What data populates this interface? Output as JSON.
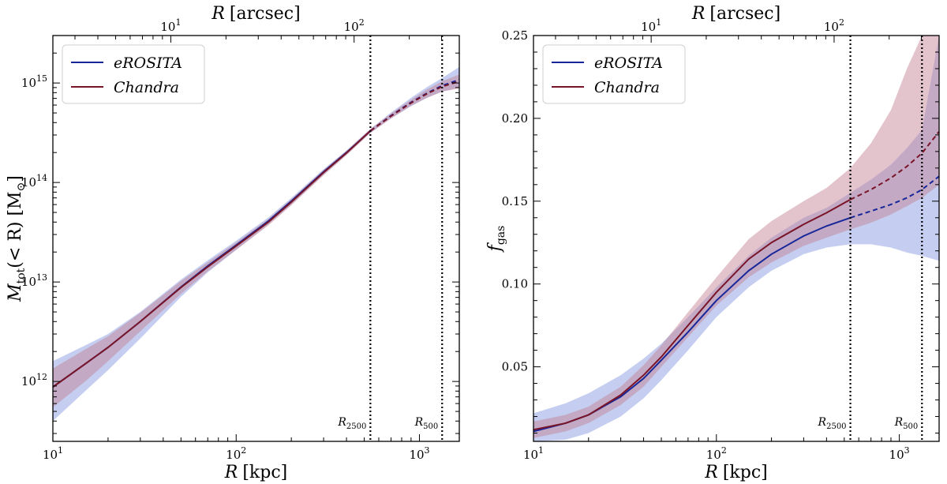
{
  "chart_data": [
    {
      "type": "line",
      "panel": "left",
      "xscale": "log",
      "yscale": "log",
      "xlim": [
        10,
        1650
      ],
      "ylim": [
        250000000000.0,
        3000000000000000.0
      ],
      "xlabel_var": "R",
      "xlabel_unit": "[kpc]",
      "x2label_var": "R",
      "x2label_unit": "[arcsec]",
      "ylabel_var": "M",
      "ylabel_sub": "tot",
      "ylabel_expr": "(< R) [M",
      "ylabel_close": "]",
      "xticks": [
        {
          "base": "10",
          "exp": "1",
          "value": 10
        },
        {
          "base": "10",
          "exp": "2",
          "value": 100
        },
        {
          "base": "10",
          "exp": "3",
          "value": 1000
        }
      ],
      "x2ticks": [
        {
          "base": "10",
          "exp": "1",
          "kpc": 44
        },
        {
          "base": "10",
          "exp": "2",
          "kpc": 440
        }
      ],
      "yticks": [
        {
          "base": "10",
          "exp": "12",
          "value": 1000000000000.0
        },
        {
          "base": "10",
          "exp": "13",
          "value": 10000000000000.0
        },
        {
          "base": "10",
          "exp": "14",
          "value": 100000000000000.0
        },
        {
          "base": "10",
          "exp": "15",
          "value": 1000000000000000.0
        }
      ],
      "vlines": [
        {
          "x": 540,
          "label_main": "R",
          "label_sub": "2500"
        },
        {
          "x": 1330,
          "label_main": "R",
          "label_sub": "500"
        }
      ],
      "legend": {
        "placement": "top-left",
        "entries": [
          {
            "name": "eROSITA",
            "color": "#17279a"
          },
          {
            "name": "Chandra",
            "color": "#7a1528"
          }
        ]
      },
      "dashed_after": 540,
      "series": [
        {
          "name": "eROSITA",
          "color": "#17279a",
          "band_color": "#7f93de",
          "x": [
            10,
            15,
            20,
            30,
            50,
            70,
            100,
            150,
            200,
            300,
            400,
            540,
            700,
            900,
            1100,
            1330,
            1650
          ],
          "y": [
            880000000000.0,
            1500000000000.0,
            2200000000000.0,
            4000000000000.0,
            8900000000000.0,
            14500000000000.0,
            23500000000000.0,
            41000000000000.0,
            65000000000000.0,
            128000000000000.0,
            200000000000000.0,
            330000000000000.0,
            470000000000000.0,
            640000000000000.0,
            790000000000000.0,
            940000000000000.0,
            1080000000000000.0
          ],
          "lower": [
            400000000000.0,
            800000000000.0,
            1300000000000.0,
            2700000000000.0,
            7100000000000.0,
            12500000000000.0,
            21000000000000.0,
            38000000000000.0,
            60000000000000.0,
            120000000000000.0,
            190000000000000.0,
            315000000000000.0,
            440000000000000.0,
            585000000000000.0,
            710000000000000.0,
            820000000000000.0,
            900000000000000.0
          ],
          "upper": [
            1600000000000.0,
            2300000000000.0,
            3000000000000.0,
            5000000000000.0,
            10600000000000.0,
            16500000000000.0,
            26000000000000.0,
            44500000000000.0,
            70000000000000.0,
            136000000000000.0,
            210000000000000.0,
            345000000000000.0,
            505000000000000.0,
            710000000000000.0,
            910000000000000.0,
            1120000000000000.0,
            1450000000000000.0
          ]
        },
        {
          "name": "Chandra",
          "color": "#7a1528",
          "band_color": "#c27c8f",
          "x": [
            10,
            15,
            20,
            30,
            50,
            70,
            100,
            150,
            200,
            300,
            400,
            540,
            700,
            900,
            1100,
            1330,
            1650
          ],
          "y": [
            880000000000.0,
            1500000000000.0,
            2200000000000.0,
            4000000000000.0,
            8800000000000.0,
            14200000000000.0,
            23000000000000.0,
            40000000000000.0,
            63500000000000.0,
            126000000000000.0,
            198000000000000.0,
            330000000000000.0,
            465000000000000.0,
            630000000000000.0,
            780000000000000.0,
            920000000000000.0,
            1040000000000000.0
          ],
          "lower": [
            550000000000.0,
            1000000000000.0,
            1600000000000.0,
            3200000000000.0,
            7600000000000.0,
            12800000000000.0,
            21000000000000.0,
            37000000000000.0,
            59000000000000.0,
            118000000000000.0,
            188000000000000.0,
            315000000000000.0,
            440000000000000.0,
            590000000000000.0,
            710000000000000.0,
            820000000000000.0,
            880000000000000.0
          ],
          "upper": [
            1350000000000.0,
            2100000000000.0,
            2850000000000.0,
            4900000000000.0,
            10200000000000.0,
            15800000000000.0,
            25000000000000.0,
            43000000000000.0,
            68000000000000.0,
            134000000000000.0,
            208000000000000.0,
            345000000000000.0,
            495000000000000.0,
            680000000000000.0,
            860000000000000.0,
            1040000000000000.0,
            1220000000000000.0
          ]
        }
      ]
    },
    {
      "type": "line",
      "panel": "right",
      "xscale": "log",
      "yscale": "linear",
      "xlim": [
        10,
        1650
      ],
      "ylim": [
        0.005,
        0.25
      ],
      "xlabel_var": "R",
      "xlabel_unit": "[kpc]",
      "x2label_var": "R",
      "x2label_unit": "[arcsec]",
      "ylabel_var": "f",
      "ylabel_sub": "gas",
      "xticks": [
        {
          "base": "10",
          "exp": "1",
          "value": 10
        },
        {
          "base": "10",
          "exp": "2",
          "value": 100
        },
        {
          "base": "10",
          "exp": "3",
          "value": 1000
        }
      ],
      "x2ticks": [
        {
          "base": "10",
          "exp": "1",
          "kpc": 44
        },
        {
          "base": "10",
          "exp": "2",
          "kpc": 440
        }
      ],
      "yticks": [
        {
          "label": "0.05",
          "value": 0.05
        },
        {
          "label": "0.10",
          "value": 0.1
        },
        {
          "label": "0.15",
          "value": 0.15
        },
        {
          "label": "0.20",
          "value": 0.2
        },
        {
          "label": "0.25",
          "value": 0.25
        }
      ],
      "vlines": [
        {
          "x": 540,
          "label_main": "R",
          "label_sub": "2500"
        },
        {
          "x": 1330,
          "label_main": "R",
          "label_sub": "500"
        }
      ],
      "legend": {
        "placement": "top-left",
        "entries": [
          {
            "name": "eROSITA",
            "color": "#17279a"
          },
          {
            "name": "Chandra",
            "color": "#7a1528"
          }
        ]
      },
      "dashed_after": 540,
      "series": [
        {
          "name": "eROSITA",
          "color": "#17279a",
          "band_color": "#7f93de",
          "x": [
            10,
            15,
            20,
            30,
            40,
            50,
            70,
            100,
            150,
            200,
            300,
            400,
            540,
            700,
            900,
            1100,
            1330,
            1650
          ],
          "y": [
            0.011,
            0.016,
            0.021,
            0.032,
            0.043,
            0.054,
            0.071,
            0.09,
            0.108,
            0.118,
            0.129,
            0.135,
            0.14,
            0.144,
            0.148,
            0.152,
            0.157,
            0.165
          ],
          "lower": [
            0.003,
            0.006,
            0.01,
            0.02,
            0.031,
            0.042,
            0.06,
            0.08,
            0.098,
            0.108,
            0.118,
            0.122,
            0.124,
            0.124,
            0.122,
            0.119,
            0.117,
            0.114
          ],
          "upper": [
            0.022,
            0.028,
            0.034,
            0.045,
            0.055,
            0.064,
            0.08,
            0.098,
            0.117,
            0.128,
            0.14,
            0.146,
            0.155,
            0.163,
            0.172,
            0.182,
            0.193,
            0.25
          ]
        },
        {
          "name": "Chandra",
          "color": "#7a1528",
          "band_color": "#c27c8f",
          "x": [
            10,
            15,
            20,
            30,
            40,
            50,
            70,
            100,
            150,
            200,
            300,
            400,
            540,
            700,
            900,
            1100,
            1330,
            1650
          ],
          "y": [
            0.012,
            0.016,
            0.021,
            0.033,
            0.045,
            0.056,
            0.075,
            0.095,
            0.115,
            0.125,
            0.136,
            0.143,
            0.151,
            0.157,
            0.164,
            0.171,
            0.179,
            0.192
          ],
          "lower": [
            0.007,
            0.011,
            0.016,
            0.027,
            0.038,
            0.05,
            0.068,
            0.087,
            0.104,
            0.113,
            0.123,
            0.128,
            0.133,
            0.137,
            0.142,
            0.147,
            0.152,
            0.16
          ],
          "upper": [
            0.017,
            0.021,
            0.026,
            0.038,
            0.051,
            0.063,
            0.083,
            0.104,
            0.127,
            0.138,
            0.15,
            0.158,
            0.17,
            0.185,
            0.205,
            0.23,
            0.25,
            0.25
          ]
        }
      ]
    }
  ]
}
